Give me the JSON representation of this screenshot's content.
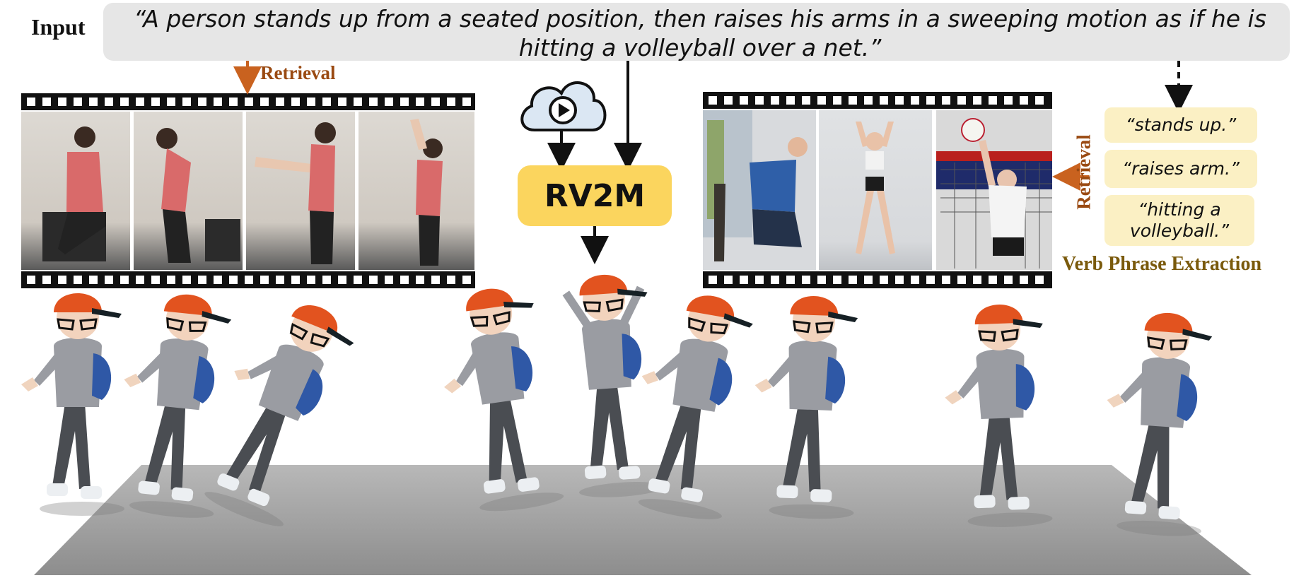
{
  "input_label": "Input",
  "prompt": "“A person stands up from a seated position, then raises his arms in a sweeping motion as if he is hitting a volleyball over a net.”",
  "retrieval_label": "Retrieval",
  "model_label": "RV2M",
  "verb_phrases": [
    "“stands up.”",
    "“raises arm.”",
    "“hitting a volleyball.”"
  ],
  "verb_phrase_title": "Verb Phrase Extraction",
  "icons": {
    "cloud": "cloud-video-icon",
    "arrow": "arrow-icon"
  },
  "colors": {
    "prompt_bg": "#e6e6e6",
    "model_box": "#fbd55e",
    "phrase_box": "#fbf0c4",
    "retrieval_text": "#9a4a12",
    "extraction_text": "#7a5a0c",
    "floor": "#9a9a9a",
    "cap": "#e2531f"
  }
}
